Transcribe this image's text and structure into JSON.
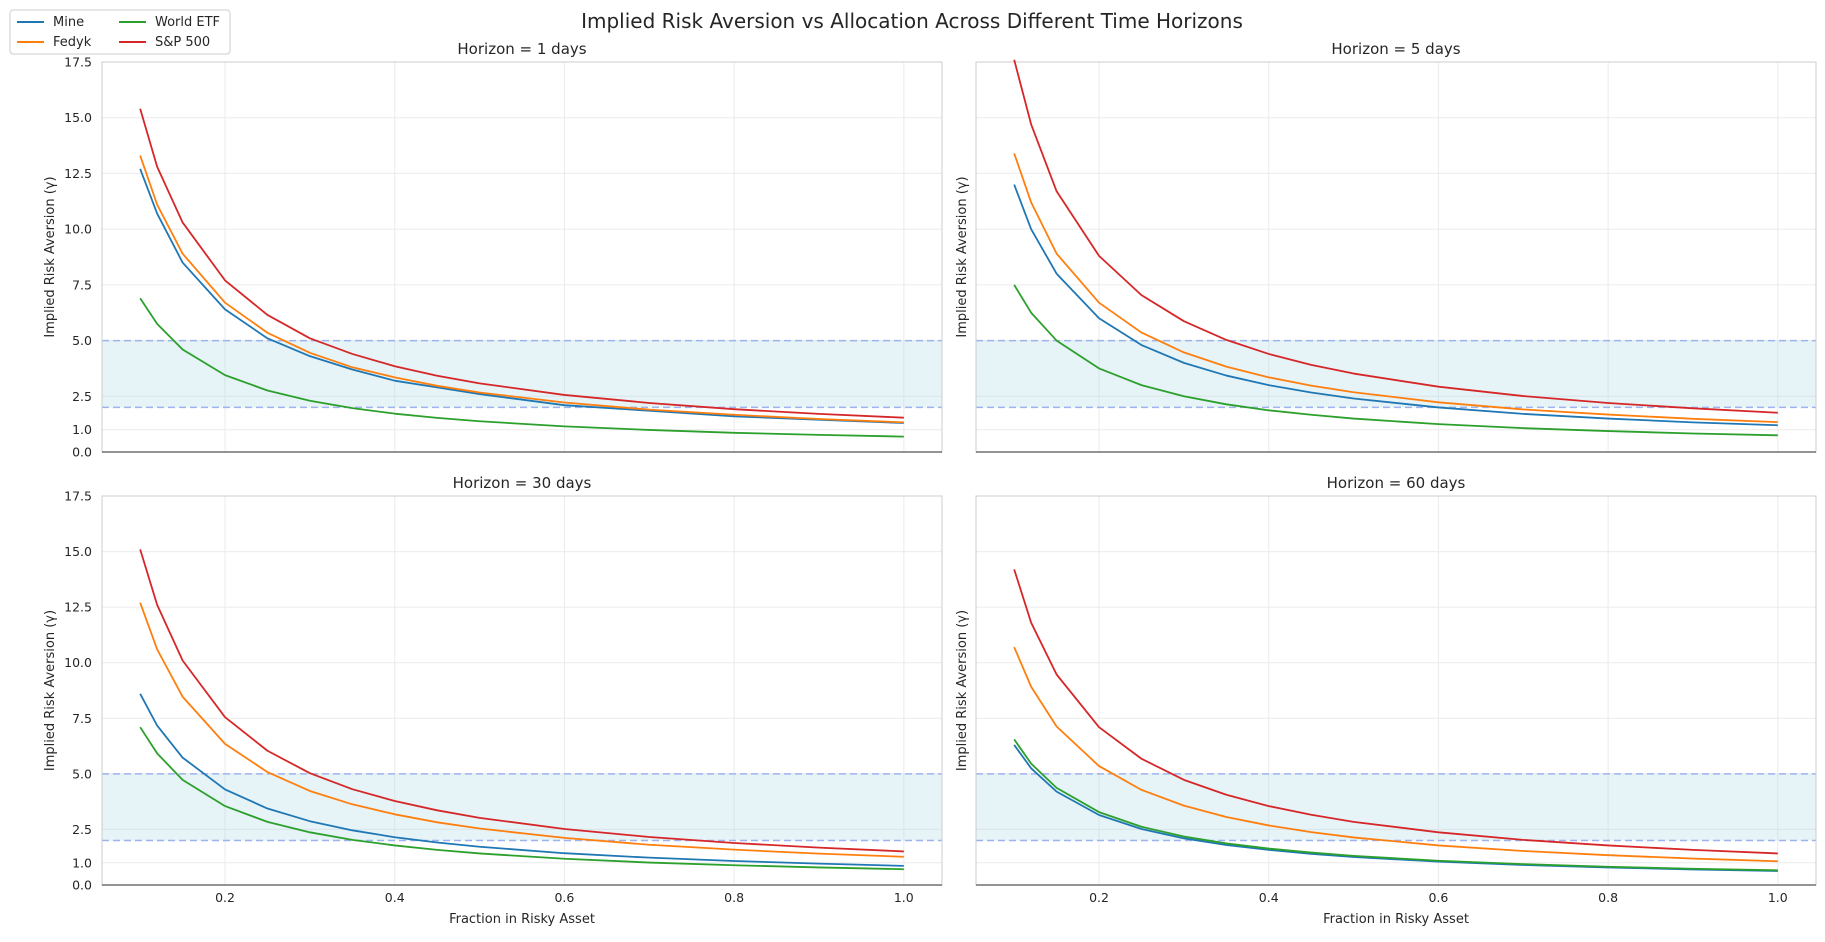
{
  "figure": {
    "title": "Implied Risk Aversion vs Allocation Across Different Time Horizons"
  },
  "legend": {
    "placement": "top-left",
    "entries": [
      {
        "label": "Mine",
        "color": "#1f77b4"
      },
      {
        "label": "Fedyk",
        "color": "#ff7f0e"
      },
      {
        "label": "World ETF",
        "color": "#2ca02c"
      },
      {
        "label": "S&P 500",
        "color": "#d62728"
      }
    ]
  },
  "chart_data": [
    {
      "type": "line",
      "title": "Horizon = 1 days",
      "xlabel": "",
      "ylabel": "Implied Risk Aversion (γ)",
      "xlim": [
        0.055,
        1.045
      ],
      "ylim": [
        0,
        17.5
      ],
      "xticks": [
        "0.2",
        "0.4",
        "0.6",
        "0.8",
        "1.0"
      ],
      "yticks": [
        "0.0",
        "1.0",
        "2.5",
        "5.0",
        "7.5",
        "10.0",
        "12.5",
        "15.0",
        "17.5"
      ],
      "band": [
        2.0,
        5.0
      ],
      "grid": true,
      "series": [
        {
          "name": "Mine",
          "color": "#1f77b4",
          "x": [
            0.1,
            0.12,
            0.15,
            0.2,
            0.25,
            0.3,
            0.35,
            0.4,
            0.45,
            0.5,
            0.6,
            0.7,
            0.8,
            0.9,
            1.0
          ],
          "y": [
            12.7,
            10.7,
            8.5,
            6.4,
            5.1,
            4.3,
            3.7,
            3.2,
            2.9,
            2.6,
            2.1,
            1.85,
            1.6,
            1.45,
            1.3
          ]
        },
        {
          "name": "Fedyk",
          "color": "#ff7f0e",
          "x": [
            0.1,
            0.12,
            0.15,
            0.2,
            0.25,
            0.3,
            0.35,
            0.4,
            0.45,
            0.5,
            0.6,
            0.7,
            0.8,
            0.9,
            1.0
          ],
          "y": [
            13.3,
            11.1,
            8.9,
            6.7,
            5.35,
            4.45,
            3.8,
            3.35,
            2.97,
            2.67,
            2.22,
            1.9,
            1.67,
            1.48,
            1.33
          ]
        },
        {
          "name": "World ETF",
          "color": "#2ca02c",
          "x": [
            0.1,
            0.12,
            0.15,
            0.2,
            0.25,
            0.3,
            0.35,
            0.4,
            0.45,
            0.5,
            0.6,
            0.7,
            0.8,
            0.9,
            1.0
          ],
          "y": [
            6.9,
            5.75,
            4.6,
            3.45,
            2.76,
            2.3,
            1.97,
            1.72,
            1.53,
            1.38,
            1.15,
            0.99,
            0.86,
            0.77,
            0.69
          ]
        },
        {
          "name": "S&P 500",
          "color": "#d62728",
          "x": [
            0.1,
            0.12,
            0.15,
            0.2,
            0.25,
            0.3,
            0.35,
            0.4,
            0.45,
            0.5,
            0.6,
            0.7,
            0.8,
            0.9,
            1.0
          ],
          "y": [
            15.4,
            12.8,
            10.3,
            7.7,
            6.15,
            5.1,
            4.4,
            3.85,
            3.42,
            3.08,
            2.56,
            2.2,
            1.92,
            1.71,
            1.54
          ]
        }
      ]
    },
    {
      "type": "line",
      "title": "Horizon = 5 days",
      "xlabel": "",
      "ylabel": "Implied Risk Aversion (γ)",
      "xlim": [
        0.055,
        1.045
      ],
      "ylim": [
        0,
        17.5
      ],
      "xticks": [
        "0.2",
        "0.4",
        "0.6",
        "0.8",
        "1.0"
      ],
      "yticks": [
        "0.0",
        "1.0",
        "2.5",
        "5.0",
        "7.5",
        "10.0",
        "12.5",
        "15.0",
        "17.5"
      ],
      "band": [
        2.0,
        5.0
      ],
      "grid": true,
      "series": [
        {
          "name": "Mine",
          "color": "#1f77b4",
          "x": [
            0.1,
            0.12,
            0.15,
            0.2,
            0.25,
            0.3,
            0.35,
            0.4,
            0.45,
            0.5,
            0.6,
            0.7,
            0.8,
            0.9,
            1.0
          ],
          "y": [
            12.0,
            10.0,
            8.0,
            6.0,
            4.8,
            4.0,
            3.43,
            3.0,
            2.67,
            2.4,
            2.0,
            1.71,
            1.5,
            1.33,
            1.2
          ]
        },
        {
          "name": "Fedyk",
          "color": "#ff7f0e",
          "x": [
            0.1,
            0.12,
            0.15,
            0.2,
            0.25,
            0.3,
            0.35,
            0.4,
            0.45,
            0.5,
            0.6,
            0.7,
            0.8,
            0.9,
            1.0
          ],
          "y": [
            13.4,
            11.2,
            8.9,
            6.7,
            5.36,
            4.47,
            3.83,
            3.35,
            2.98,
            2.68,
            2.23,
            1.91,
            1.68,
            1.49,
            1.34
          ]
        },
        {
          "name": "World ETF",
          "color": "#2ca02c",
          "x": [
            0.1,
            0.12,
            0.15,
            0.2,
            0.25,
            0.3,
            0.35,
            0.4,
            0.45,
            0.5,
            0.6,
            0.7,
            0.8,
            0.9,
            1.0
          ],
          "y": [
            7.5,
            6.25,
            5.0,
            3.75,
            3.0,
            2.5,
            2.14,
            1.87,
            1.67,
            1.5,
            1.25,
            1.07,
            0.94,
            0.83,
            0.75
          ]
        },
        {
          "name": "S&P 500",
          "color": "#d62728",
          "x": [
            0.1,
            0.12,
            0.15,
            0.2,
            0.25,
            0.3,
            0.35,
            0.4,
            0.45,
            0.5,
            0.6,
            0.7,
            0.8,
            0.9,
            1.0
          ],
          "y": [
            17.6,
            14.7,
            11.7,
            8.8,
            7.04,
            5.87,
            5.03,
            4.4,
            3.91,
            3.52,
            2.93,
            2.51,
            2.2,
            1.96,
            1.76
          ]
        }
      ]
    },
    {
      "type": "line",
      "title": "Horizon = 30 days",
      "xlabel": "Fraction in Risky Asset",
      "ylabel": "Implied Risk Aversion (γ)",
      "xlim": [
        0.055,
        1.045
      ],
      "ylim": [
        0,
        17.5
      ],
      "xticks": [
        "0.2",
        "0.4",
        "0.6",
        "0.8",
        "1.0"
      ],
      "yticks": [
        "0.0",
        "1.0",
        "2.5",
        "5.0",
        "7.5",
        "10.0",
        "12.5",
        "15.0",
        "17.5"
      ],
      "band": [
        2.0,
        5.0
      ],
      "grid": true,
      "series": [
        {
          "name": "Mine",
          "color": "#1f77b4",
          "x": [
            0.1,
            0.12,
            0.15,
            0.2,
            0.25,
            0.3,
            0.35,
            0.4,
            0.45,
            0.5,
            0.6,
            0.7,
            0.8,
            0.9,
            1.0
          ],
          "y": [
            8.6,
            7.17,
            5.73,
            4.3,
            3.44,
            2.87,
            2.46,
            2.15,
            1.91,
            1.72,
            1.43,
            1.23,
            1.08,
            0.96,
            0.86
          ]
        },
        {
          "name": "Fedyk",
          "color": "#ff7f0e",
          "x": [
            0.1,
            0.12,
            0.15,
            0.2,
            0.25,
            0.3,
            0.35,
            0.4,
            0.45,
            0.5,
            0.6,
            0.7,
            0.8,
            0.9,
            1.0
          ],
          "y": [
            12.7,
            10.6,
            8.47,
            6.35,
            5.08,
            4.23,
            3.63,
            3.18,
            2.82,
            2.54,
            2.12,
            1.81,
            1.59,
            1.41,
            1.27
          ]
        },
        {
          "name": "World ETF",
          "color": "#2ca02c",
          "x": [
            0.1,
            0.12,
            0.15,
            0.2,
            0.25,
            0.3,
            0.35,
            0.4,
            0.45,
            0.5,
            0.6,
            0.7,
            0.8,
            0.9,
            1.0
          ],
          "y": [
            7.1,
            5.92,
            4.73,
            3.55,
            2.84,
            2.37,
            2.03,
            1.78,
            1.58,
            1.42,
            1.18,
            1.01,
            0.89,
            0.79,
            0.71
          ]
        },
        {
          "name": "S&P 500",
          "color": "#d62728",
          "x": [
            0.1,
            0.12,
            0.15,
            0.2,
            0.25,
            0.3,
            0.35,
            0.4,
            0.45,
            0.5,
            0.6,
            0.7,
            0.8,
            0.9,
            1.0
          ],
          "y": [
            15.1,
            12.6,
            10.1,
            7.55,
            6.04,
            5.03,
            4.31,
            3.78,
            3.36,
            3.02,
            2.52,
            2.16,
            1.89,
            1.68,
            1.51
          ]
        }
      ]
    },
    {
      "type": "line",
      "title": "Horizon = 60 days",
      "xlabel": "Fraction in Risky Asset",
      "ylabel": "Implied Risk Aversion (γ)",
      "xlim": [
        0.055,
        1.045
      ],
      "ylim": [
        0,
        17.5
      ],
      "xticks": [
        "0.2",
        "0.4",
        "0.6",
        "0.8",
        "1.0"
      ],
      "yticks": [
        "0.0",
        "1.0",
        "2.5",
        "5.0",
        "7.5",
        "10.0",
        "12.5",
        "15.0",
        "17.5"
      ],
      "band": [
        2.0,
        5.0
      ],
      "grid": true,
      "series": [
        {
          "name": "Mine",
          "color": "#1f77b4",
          "x": [
            0.1,
            0.12,
            0.15,
            0.2,
            0.25,
            0.3,
            0.35,
            0.4,
            0.45,
            0.5,
            0.6,
            0.7,
            0.8,
            0.9,
            1.0
          ],
          "y": [
            6.3,
            5.25,
            4.2,
            3.15,
            2.52,
            2.1,
            1.8,
            1.58,
            1.4,
            1.26,
            1.05,
            0.9,
            0.79,
            0.7,
            0.63
          ]
        },
        {
          "name": "Fedyk",
          "color": "#ff7f0e",
          "x": [
            0.1,
            0.12,
            0.15,
            0.2,
            0.25,
            0.3,
            0.35,
            0.4,
            0.45,
            0.5,
            0.6,
            0.7,
            0.8,
            0.9,
            1.0
          ],
          "y": [
            10.7,
            8.92,
            7.13,
            5.35,
            4.28,
            3.57,
            3.06,
            2.68,
            2.38,
            2.14,
            1.78,
            1.53,
            1.34,
            1.19,
            1.07
          ]
        },
        {
          "name": "World ETF",
          "color": "#2ca02c",
          "x": [
            0.1,
            0.12,
            0.15,
            0.2,
            0.25,
            0.3,
            0.35,
            0.4,
            0.45,
            0.5,
            0.6,
            0.7,
            0.8,
            0.9,
            1.0
          ],
          "y": [
            6.55,
            5.46,
            4.37,
            3.28,
            2.62,
            2.18,
            1.87,
            1.64,
            1.46,
            1.31,
            1.09,
            0.94,
            0.82,
            0.73,
            0.66
          ]
        },
        {
          "name": "S&P 500",
          "color": "#d62728",
          "x": [
            0.1,
            0.12,
            0.15,
            0.2,
            0.25,
            0.3,
            0.35,
            0.4,
            0.45,
            0.5,
            0.6,
            0.7,
            0.8,
            0.9,
            1.0
          ],
          "y": [
            14.2,
            11.8,
            9.47,
            7.1,
            5.68,
            4.73,
            4.06,
            3.55,
            3.16,
            2.84,
            2.37,
            2.03,
            1.78,
            1.58,
            1.42
          ]
        }
      ]
    }
  ]
}
